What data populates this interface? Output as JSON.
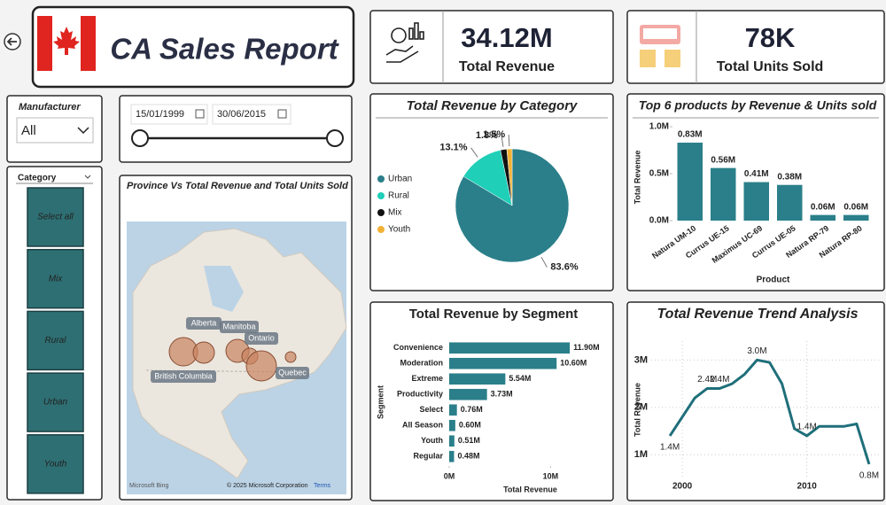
{
  "header": {
    "title": "CA Sales Report"
  },
  "kpis": [
    {
      "value": "34.12M",
      "label": "Total Revenue"
    },
    {
      "value": "78K",
      "label": "Total Units Sold"
    }
  ],
  "filters": {
    "manufacturer_label": "Manufacturer",
    "manufacturer_value": "All",
    "date_start": "15/01/1999",
    "date_end": "30/06/2015",
    "category_label": "Category",
    "category_buttons": [
      "Select all",
      "Mix",
      "Rural",
      "Urban",
      "Youth"
    ]
  },
  "map": {
    "title": "Province Vs Total Revenue and Total Units Sold",
    "labels": [
      "Alberta",
      "Manitoba",
      "Ontario",
      "British Columbia",
      "Quebec"
    ],
    "credits": [
      "Microsoft Bing",
      "© 2025 Microsoft Corporation",
      "Terms"
    ]
  },
  "chart_data": [
    {
      "type": "pie",
      "title": "Total Revenue by Category",
      "categories": [
        "Urban",
        "Rural",
        "Mix",
        "Youth"
      ],
      "values": [
        83.6,
        13.1,
        1.8,
        1.5
      ],
      "value_labels": [
        "83.6%",
        "13.1%",
        "1.8%",
        "1.5%"
      ],
      "colors": [
        "#2a7f8a",
        "#1fcfb8",
        "#111111",
        "#f2b134"
      ],
      "legend": "left"
    },
    {
      "type": "bar",
      "orientation": "vertical",
      "title": "Top 6 products by Revenue & Units sold",
      "categories": [
        "Natura UM-10",
        "Currus UE-15",
        "Maximus UC-69",
        "Currus UE-05",
        "Natura RP-79",
        "Natura RP-80"
      ],
      "values": [
        0.83,
        0.56,
        0.41,
        0.38,
        0.06,
        0.06
      ],
      "value_labels": [
        "0.83M",
        "0.56M",
        "0.41M",
        "0.38M",
        "0.06M",
        "0.06M"
      ],
      "color": "#2a7f8a",
      "ylim": [
        0,
        1
      ],
      "yticks": [
        {
          "value": 0,
          "label": "0.0M"
        },
        {
          "value": 0.5,
          "label": "0.5M"
        },
        {
          "value": 1,
          "label": "1.0M"
        }
      ],
      "xlabel": "Product",
      "ylabel": "Total Revenue"
    },
    {
      "type": "bar",
      "orientation": "horizontal",
      "title": "Total Revenue by Segment",
      "categories": [
        "Convenience",
        "Moderation",
        "Extreme",
        "Productivity",
        "Select",
        "All Season",
        "Youth",
        "Regular"
      ],
      "values": [
        11.9,
        10.6,
        5.54,
        3.73,
        0.76,
        0.6,
        0.51,
        0.48
      ],
      "value_labels": [
        "11.90M",
        "10.60M",
        "5.54M",
        "3.73M",
        "0.76M",
        "0.60M",
        "0.51M",
        "0.48M"
      ],
      "color": "#2a7f8a",
      "xlim": [
        0,
        16
      ],
      "xticks": [
        {
          "value": 0,
          "label": "0M"
        },
        {
          "value": 10,
          "label": "10M"
        }
      ],
      "xlabel": "Total Revenue",
      "ylabel": "Segment"
    },
    {
      "type": "line",
      "title": "Total Revenue Trend Analysis",
      "x": [
        1999,
        2000,
        2001,
        2002,
        2003,
        2004,
        2005,
        2006,
        2007,
        2008,
        2009,
        2010,
        2011,
        2012,
        2013,
        2014,
        2015
      ],
      "values": [
        1.4,
        1.8,
        2.2,
        2.4,
        2.4,
        2.5,
        2.7,
        3.0,
        2.95,
        2.5,
        1.55,
        1.4,
        1.6,
        1.6,
        1.6,
        1.65,
        0.8
      ],
      "value_labels": [
        "1.4M",
        null,
        null,
        "2.4M",
        "2.4M",
        null,
        null,
        "3.0M",
        null,
        null,
        null,
        "1.4M",
        null,
        null,
        null,
        null,
        "0.8M"
      ],
      "color": "#1f6f7a",
      "xlim": [
        1997.5,
        2016
      ],
      "ylim": [
        0.5,
        3.4
      ],
      "xticks": [
        2000,
        2010
      ],
      "yticks": [
        {
          "value": 1,
          "label": "1M"
        },
        {
          "value": 2,
          "label": "2M"
        },
        {
          "value": 3,
          "label": "3M"
        }
      ],
      "grid": true,
      "ylabel": "Total Revenue"
    }
  ]
}
